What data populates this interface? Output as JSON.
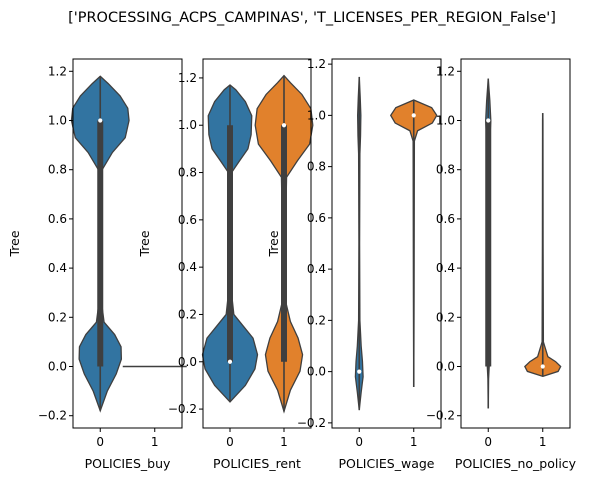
{
  "figure_title": "['PROCESSING_ACPS_CAMPINAS', 'T_LICENSES_PER_REGION_False']",
  "colors": {
    "blue": "#3274a1",
    "orange": "#e1812c",
    "box": "#3f3f3f",
    "median": "#ffffff"
  },
  "chart_data": [
    {
      "type": "violin",
      "xlabel": "POLICIES_buy",
      "ylabel": "Tree",
      "categories": [
        "0",
        "1"
      ],
      "ylim": [
        -0.25,
        1.25
      ],
      "yticks": [
        -0.2,
        0.0,
        0.2,
        0.4,
        0.6,
        0.8,
        1.0,
        1.2
      ],
      "yticklabels": [
        "−0.2",
        "0.0",
        "0.2",
        "0.4",
        "0.6",
        "0.8",
        "1.0",
        "1.2"
      ],
      "violins": [
        {
          "category": "0",
          "color": "#3274a1",
          "min": -0.18,
          "max": 1.18,
          "q1": 0.0,
          "median": 1.0,
          "q3": 1.0,
          "profile": [
            [
              -0.18,
              0.0
            ],
            [
              -0.1,
              0.22
            ],
            [
              -0.03,
              0.5
            ],
            [
              0.03,
              0.66
            ],
            [
              0.08,
              0.65
            ],
            [
              0.13,
              0.45
            ],
            [
              0.18,
              0.12
            ],
            [
              0.25,
              0.05
            ],
            [
              0.5,
              0.03
            ],
            [
              0.8,
              0.06
            ],
            [
              0.87,
              0.38
            ],
            [
              0.93,
              0.78
            ],
            [
              1.0,
              0.9
            ],
            [
              1.05,
              0.86
            ],
            [
              1.1,
              0.62
            ],
            [
              1.15,
              0.25
            ],
            [
              1.18,
              0.0
            ]
          ]
        },
        {
          "category": "1",
          "color": "#e1812c",
          "flat_line": 0.0
        }
      ]
    },
    {
      "type": "violin",
      "xlabel": "POLICIES_rent",
      "ylabel": "Tree",
      "categories": [
        "0",
        "1"
      ],
      "ylim": [
        -0.28,
        1.28
      ],
      "yticks": [
        -0.2,
        0.0,
        0.2,
        0.4,
        0.6,
        0.8,
        1.0,
        1.2
      ],
      "yticklabels": [
        "−0.2",
        "0.0",
        "0.2",
        "0.4",
        "0.6",
        "0.8",
        "1.0",
        "1.2"
      ],
      "violins": [
        {
          "category": "0",
          "color": "#3274a1",
          "min": -0.17,
          "max": 1.17,
          "q1": 0.0,
          "median": 0.0,
          "q3": 1.0,
          "profile": [
            [
              -0.17,
              0.0
            ],
            [
              -0.1,
              0.48
            ],
            [
              -0.03,
              0.78
            ],
            [
              0.03,
              0.86
            ],
            [
              0.1,
              0.72
            ],
            [
              0.15,
              0.42
            ],
            [
              0.2,
              0.12
            ],
            [
              0.3,
              0.04
            ],
            [
              0.6,
              0.03
            ],
            [
              0.8,
              0.05
            ],
            [
              0.85,
              0.3
            ],
            [
              0.9,
              0.56
            ],
            [
              0.96,
              0.66
            ],
            [
              1.04,
              0.68
            ],
            [
              1.1,
              0.48
            ],
            [
              1.15,
              0.18
            ],
            [
              1.17,
              0.0
            ]
          ]
        },
        {
          "category": "1",
          "color": "#e1812c",
          "min": -0.21,
          "max": 1.21,
          "q1": 0.0,
          "median": 1.0,
          "q3": 1.0,
          "profile": [
            [
              -0.21,
              0.0
            ],
            [
              -0.12,
              0.2
            ],
            [
              -0.04,
              0.5
            ],
            [
              0.03,
              0.58
            ],
            [
              0.1,
              0.44
            ],
            [
              0.17,
              0.2
            ],
            [
              0.25,
              0.06
            ],
            [
              0.5,
              0.04
            ],
            [
              0.78,
              0.08
            ],
            [
              0.85,
              0.42
            ],
            [
              0.92,
              0.8
            ],
            [
              1.0,
              0.9
            ],
            [
              1.07,
              0.84
            ],
            [
              1.13,
              0.56
            ],
            [
              1.18,
              0.2
            ],
            [
              1.21,
              0.0
            ]
          ]
        }
      ]
    },
    {
      "type": "violin",
      "xlabel": "POLICIES_wage",
      "ylabel": "Tree",
      "categories": [
        "0",
        "1"
      ],
      "ylim": [
        -0.22,
        1.22
      ],
      "yticks": [
        -0.2,
        0.0,
        0.2,
        0.4,
        0.6,
        0.8,
        1.0,
        1.2
      ],
      "yticklabels": [
        "−0.2",
        "0.0",
        "0.2",
        "0.4",
        "0.6",
        "0.8",
        "1.0",
        "1.2"
      ],
      "violins": [
        {
          "category": "0",
          "color": "#3274a1",
          "min": -0.15,
          "max": 1.15,
          "q1": 0.0,
          "median": 0.0,
          "q3": 0.0,
          "profile": [
            [
              -0.15,
              0.0
            ],
            [
              -0.08,
              0.06
            ],
            [
              -0.02,
              0.12
            ],
            [
              0.04,
              0.1
            ],
            [
              0.1,
              0.06
            ],
            [
              0.2,
              0.02
            ],
            [
              0.5,
              0.01
            ],
            [
              0.85,
              0.02
            ],
            [
              0.92,
              0.04
            ],
            [
              1.0,
              0.05
            ],
            [
              1.07,
              0.03
            ],
            [
              1.15,
              0.0
            ]
          ]
        },
        {
          "category": "1",
          "color": "#e1812c",
          "min": -0.06,
          "max": 1.06,
          "q1": 1.0,
          "median": 1.0,
          "q3": 1.0,
          "profile": [
            [
              -0.06,
              0.0
            ],
            [
              0.3,
              0.01
            ],
            [
              0.9,
              0.02
            ],
            [
              0.94,
              0.12
            ],
            [
              0.97,
              0.58
            ],
            [
              1.0,
              0.72
            ],
            [
              1.03,
              0.56
            ],
            [
              1.06,
              0.0
            ]
          ]
        }
      ]
    },
    {
      "type": "violin",
      "xlabel": "POLICIES_no_policy",
      "ylabel": "",
      "categories": [
        "0",
        "1"
      ],
      "ylim": [
        -0.25,
        1.25
      ],
      "yticks": [
        -0.2,
        0.0,
        0.2,
        0.4,
        0.6,
        0.8,
        1.0,
        1.2
      ],
      "yticklabels": [
        "−0.2",
        "0.0",
        "0.2",
        "0.4",
        "0.6",
        "0.8",
        "1.0",
        "1.2"
      ],
      "violins": [
        {
          "category": "0",
          "color": "#3274a1",
          "min": -0.17,
          "max": 1.17,
          "q1": 0.0,
          "median": 1.0,
          "q3": 1.0,
          "profile": [
            [
              -0.17,
              0.0
            ],
            [
              -0.05,
              0.01
            ],
            [
              0.0,
              0.03
            ],
            [
              0.3,
              0.02
            ],
            [
              0.8,
              0.03
            ],
            [
              0.95,
              0.06
            ],
            [
              1.0,
              0.08
            ],
            [
              1.08,
              0.05
            ],
            [
              1.17,
              0.0
            ]
          ]
        },
        {
          "category": "1",
          "color": "#e1812c",
          "min": -0.04,
          "max": 1.03,
          "q1": 0.0,
          "median": 0.0,
          "q3": 0.0,
          "profile": [
            [
              -0.04,
              0.0
            ],
            [
              -0.02,
              0.48
            ],
            [
              0.0,
              0.56
            ],
            [
              0.02,
              0.4
            ],
            [
              0.04,
              0.16
            ],
            [
              0.1,
              0.02
            ],
            [
              0.5,
              0.01
            ],
            [
              1.0,
              0.005
            ],
            [
              1.03,
              0.0
            ]
          ]
        }
      ]
    }
  ]
}
